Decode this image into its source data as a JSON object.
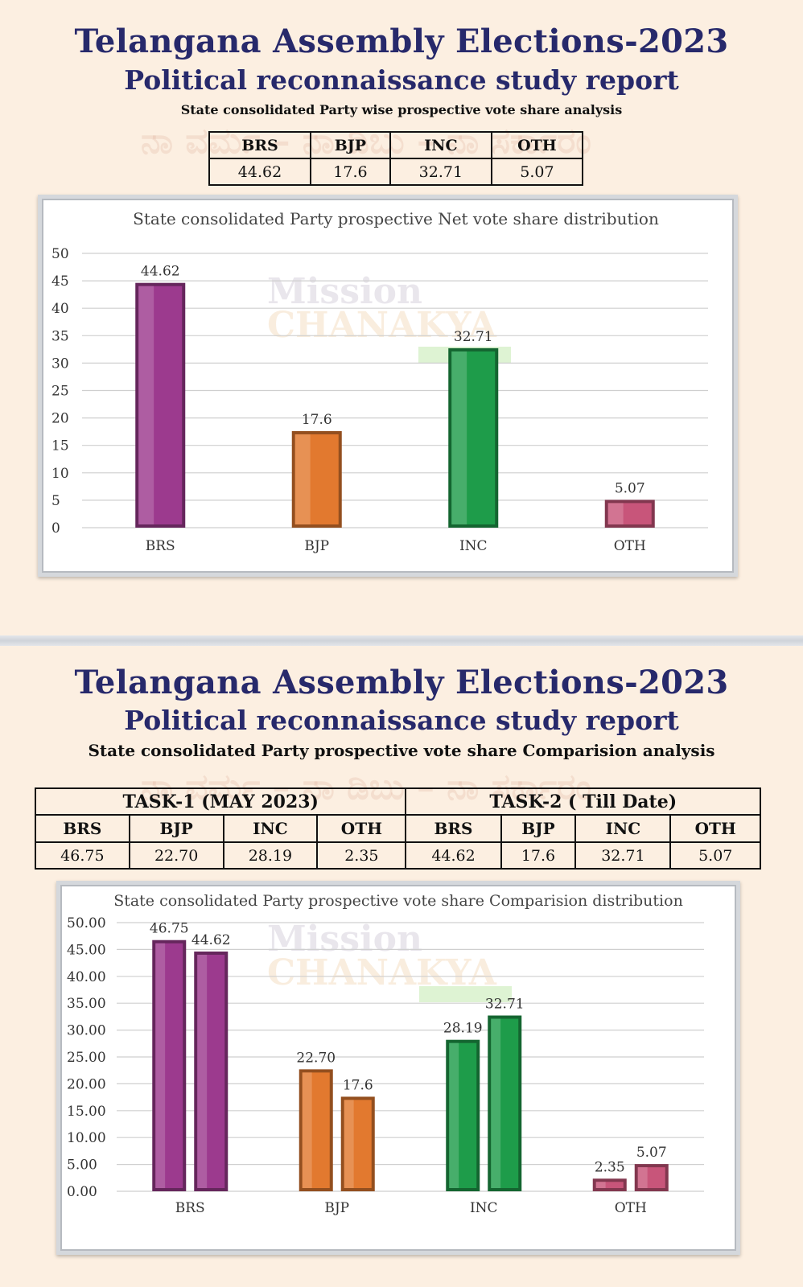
{
  "panel_1": {
    "title": "Telangana Assembly Elections-2023",
    "subtitle": "Political reconnaissance study report",
    "caption": "State consolidated Party wise prospective  vote share analysis",
    "table": {
      "headers": [
        "BRS",
        "BJP",
        "INC",
        "OTH"
      ],
      "values": [
        "44.62",
        "17.6",
        "32.71",
        "5.07"
      ]
    },
    "watermark": "Mission CHANAKYA"
  },
  "panel_2": {
    "title": "Telangana Assembly Elections-2023",
    "subtitle": "Political reconnaissance study report",
    "caption": "State consolidated Party prospective  vote share Comparision analysis",
    "table": {
      "task_1": "TASK-1 (MAY 2023)",
      "task_2": "TASK-2 ( Till Date)",
      "headers": [
        "BRS",
        "BJP",
        "INC",
        "OTH",
        "BRS",
        "BJP",
        "INC",
        "OTH"
      ],
      "values": [
        "46.75",
        "22.70",
        "28.19",
        "2.35",
        "44.62",
        "17.6",
        "32.71",
        "5.07"
      ]
    },
    "watermark": "Mission CHANAKYA"
  },
  "colors": {
    "BRS": "#9c3a8e",
    "BJP": "#e2792f",
    "INC": "#1e9c4a",
    "OTH": "#c8557a",
    "title": "#27296b"
  },
  "chart_data": [
    {
      "type": "bar",
      "title": "State consolidated Party prospective Net vote share distribution",
      "categories": [
        "BRS",
        "BJP",
        "INC",
        "OTH"
      ],
      "values": [
        44.62,
        17.6,
        32.71,
        5.07
      ],
      "value_labels": [
        "44.62",
        "17.6",
        "32.71",
        "5.07"
      ],
      "y_ticks": [
        "0",
        "5",
        "10",
        "15",
        "20",
        "25",
        "30",
        "35",
        "40",
        "45",
        "50"
      ],
      "ylim": [
        0,
        50
      ],
      "grid": true,
      "legend": "none"
    },
    {
      "type": "bar",
      "title": "State consolidated Party prospective  vote share Comparision distribution",
      "categories": [
        "BRS",
        "BJP",
        "INC",
        "OTH"
      ],
      "series": [
        {
          "values": [
            46.75,
            22.7,
            28.19,
            2.35
          ],
          "labels": [
            "46.75",
            "22.70",
            "28.19",
            "2.35"
          ]
        },
        {
          "values": [
            44.62,
            17.6,
            32.71,
            5.07
          ],
          "labels": [
            "44.62",
            "17.6",
            "32.71",
            "5.07"
          ]
        }
      ],
      "y_ticks": [
        "0.00",
        "5.00",
        "10.00",
        "15.00",
        "20.00",
        "25.00",
        "30.00",
        "35.00",
        "40.00",
        "45.00",
        "50.00"
      ],
      "ylim": [
        0,
        50
      ],
      "grid": true,
      "legend": "none"
    }
  ]
}
